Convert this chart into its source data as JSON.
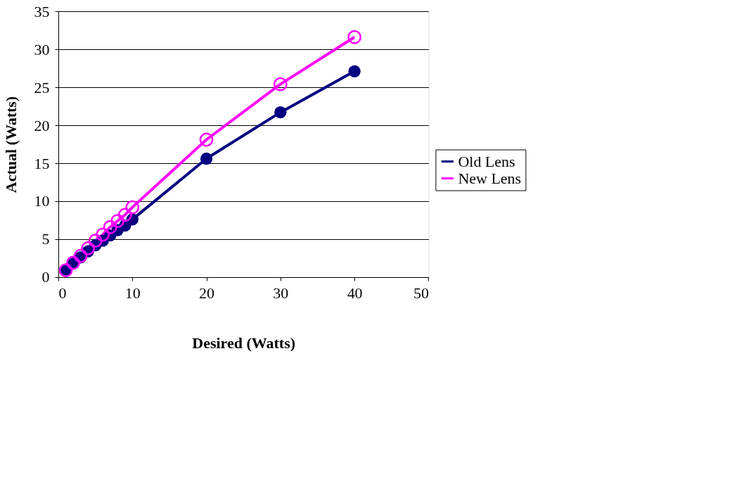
{
  "chart_data": {
    "type": "line",
    "xlabel": "Desired (Watts)",
    "ylabel": "Actual (Watts)",
    "x": [
      1,
      2,
      3,
      4,
      5,
      6,
      7,
      8,
      9,
      10,
      20,
      30,
      40
    ],
    "series": [
      {
        "name": "Old Lens",
        "color": "#000080",
        "marker": "circle",
        "values": [
          1.0,
          1.8,
          2.6,
          3.4,
          4.2,
          4.8,
          5.5,
          6.2,
          6.8,
          7.6,
          15.6,
          21.7,
          27.1
        ]
      },
      {
        "name": "New Lens",
        "color": "#ff00ff",
        "marker": "open_circle",
        "values": [
          0.9,
          1.9,
          2.8,
          3.8,
          4.8,
          5.6,
          6.6,
          7.4,
          8.2,
          9.2,
          18.1,
          25.4,
          31.6
        ]
      }
    ],
    "xlim": [
      0,
      50
    ],
    "xticks": [
      0,
      10,
      20,
      30,
      40,
      50
    ],
    "ylim": [
      0,
      35
    ],
    "yticks": [
      0,
      5,
      10,
      15,
      20,
      25,
      30,
      35
    ],
    "grid": "y",
    "legend": "right"
  }
}
